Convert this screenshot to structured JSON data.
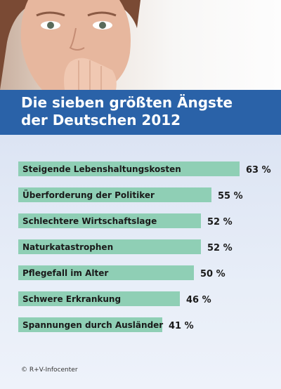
{
  "header": {
    "title_line1": "Die sieben größten Ängste",
    "title_line2": "der Deutschen 2012"
  },
  "footer": {
    "credit": "© R+V-Infocenter"
  },
  "colors": {
    "title_band": "#2a62a8",
    "bar": "#8fcfb5",
    "panel": "#dfe7f4"
  },
  "chart_data": {
    "type": "bar",
    "orientation": "horizontal",
    "title": "Die sieben größten Ängste der Deutschen 2012",
    "categories": [
      "Steigende Lebenshaltungskosten",
      "Überforderung der Politiker",
      "Schlechtere Wirtschaftslage",
      "Naturkatastrophen",
      "Pflegefall im Alter",
      "Schwere Erkrankung",
      "Spannungen durch Ausländer"
    ],
    "values": [
      63,
      55,
      52,
      52,
      50,
      46,
      41
    ],
    "value_labels": [
      "63 %",
      "55 %",
      "52 %",
      "52 %",
      "50 %",
      "46 %",
      "41 %"
    ],
    "unit": "%",
    "grid": false,
    "legend": "none"
  }
}
